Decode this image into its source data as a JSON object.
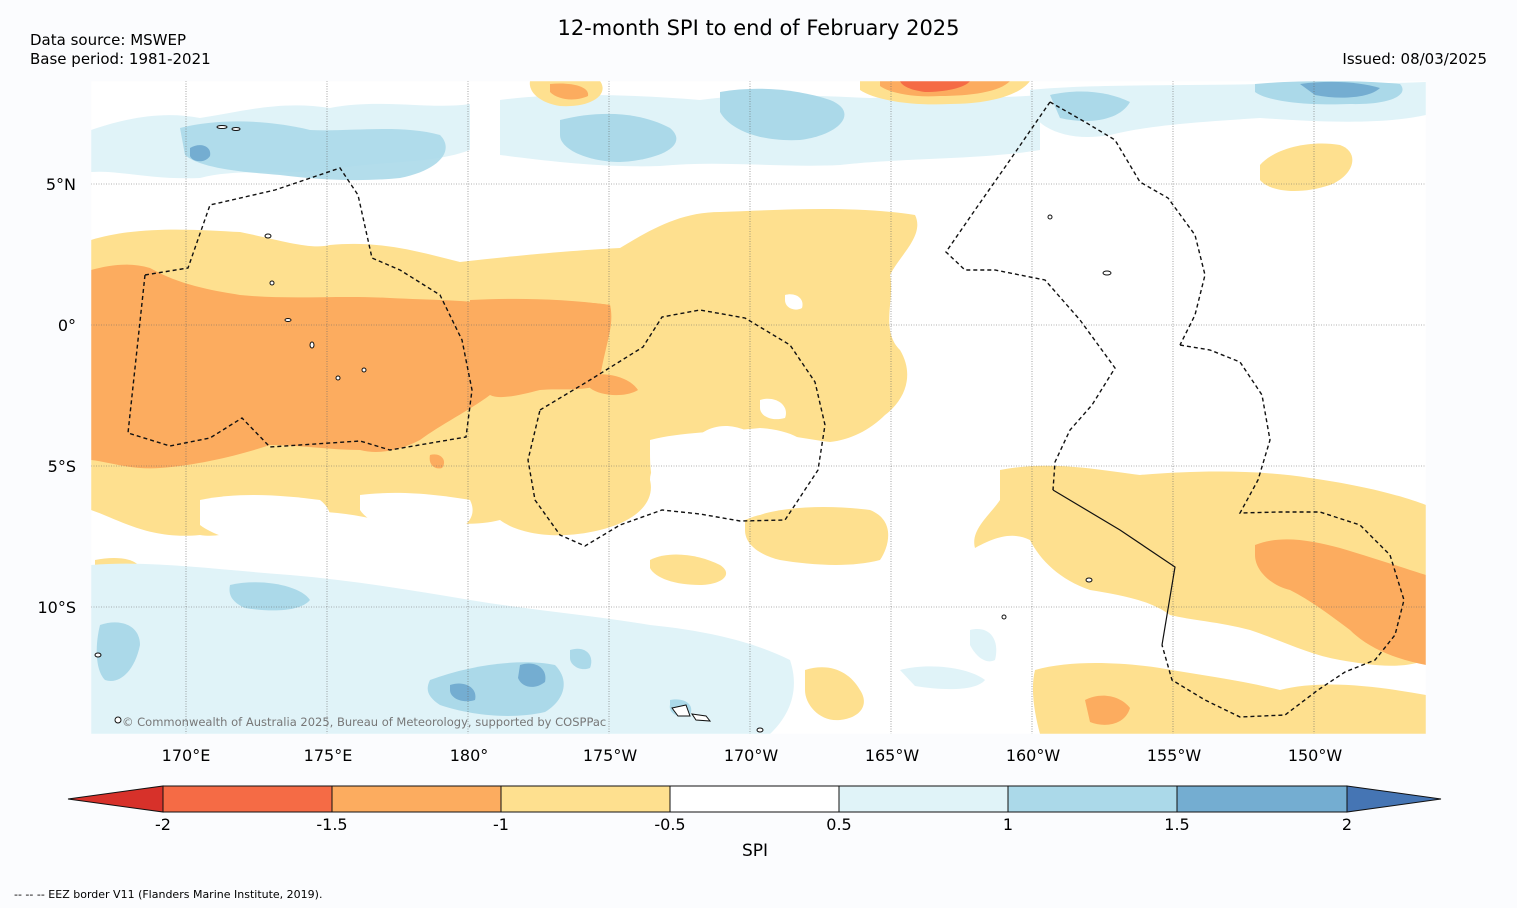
{
  "header": {
    "title": "12-month SPI to end of February 2025",
    "data_source": "Data source: MSWEP",
    "base_period": "Base period: 1981-2021",
    "issued": "Issued: 08/03/2025"
  },
  "map": {
    "lat_labels": [
      "5°N",
      "0°",
      "5°S",
      "10°S"
    ],
    "lon_labels": [
      "170°E",
      "175°E",
      "180°",
      "175°W",
      "170°W",
      "165°W",
      "160°W",
      "155°W",
      "150°W"
    ],
    "copyright": "© Commonwealth of Australia 2025, Bureau of Meteorology, supported by COSPPac",
    "eez_note": "--  --  -- EEZ border V11 (Flanders Marine Institute, 2019)."
  },
  "colorbar": {
    "label": "SPI",
    "ticks": [
      "-2",
      "-1.5",
      "-1",
      "-0.5",
      "0.5",
      "1",
      "1.5",
      "2"
    ],
    "colors": {
      "below_-2": "#d7312a",
      "-2_to_-1.5": "#f56b45",
      "-1.5_to_-1": "#fcac5f",
      "-1_to_-0.5": "#fee08f",
      "-0.5_to_0.5": "#ffffff",
      "0.5_to_1": "#e0f3f8",
      "1_to_1.5": "#abd9e9",
      "1.5_to_2": "#74add1",
      "above_2": "#4575b4"
    }
  }
}
